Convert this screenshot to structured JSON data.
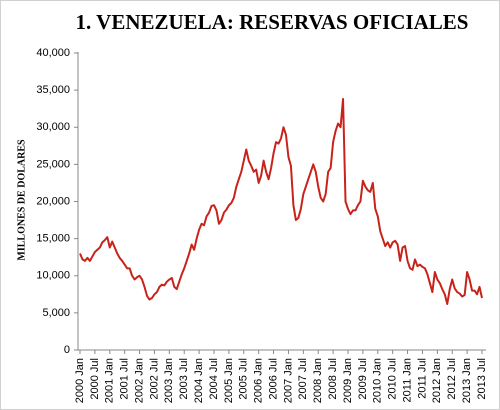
{
  "chart_data": {
    "type": "line",
    "title": "1. VENEZUELA: RESERVAS OFICIALES",
    "y_label": "MILLONES DE DOLARES",
    "color": "#c8231b",
    "ylim": [
      0,
      40000
    ],
    "yticks": [
      0,
      {
        "value": 5000,
        "label": "5,000"
      },
      {
        "value": 10000,
        "label": "10,000"
      },
      {
        "value": 15000,
        "label": "15,000"
      },
      {
        "value": 20000,
        "label": "20,000"
      },
      {
        "value": 25000,
        "label": "25,000"
      },
      {
        "value": 30000,
        "label": "30,000"
      },
      {
        "value": 35000,
        "label": "35,000"
      },
      {
        "value": 40000,
        "label": "40,000"
      }
    ],
    "categories": [
      "2000 Jan",
      null,
      null,
      null,
      null,
      null,
      "2000 Jul",
      null,
      null,
      null,
      null,
      null,
      "2001 Jan",
      null,
      null,
      null,
      null,
      null,
      "2001 Jul",
      null,
      null,
      null,
      null,
      null,
      "2002 Jan",
      null,
      null,
      null,
      null,
      null,
      "2002 Jul",
      null,
      null,
      null,
      null,
      null,
      "2003 Jan",
      null,
      null,
      null,
      null,
      null,
      "2003 Jul",
      null,
      null,
      null,
      null,
      null,
      "2004 Jan",
      null,
      null,
      null,
      null,
      null,
      "2004 Jul",
      null,
      null,
      null,
      null,
      null,
      "2005 Jan",
      null,
      null,
      null,
      null,
      null,
      "2005 Jul",
      null,
      null,
      null,
      null,
      null,
      "2006 Jan",
      null,
      null,
      null,
      null,
      null,
      "2006 Jul",
      null,
      null,
      null,
      null,
      null,
      "2007 Jan",
      null,
      null,
      null,
      null,
      null,
      "2007 Jul",
      null,
      null,
      null,
      null,
      null,
      "2008 Jan",
      null,
      null,
      null,
      null,
      null,
      "2008 Jul",
      null,
      null,
      null,
      null,
      null,
      "2009 Jan",
      null,
      null,
      null,
      null,
      null,
      "2009 Jul",
      null,
      null,
      null,
      null,
      null,
      "2010 Jan",
      null,
      null,
      null,
      null,
      null,
      "2010 Jul",
      null,
      null,
      null,
      null,
      null,
      "2011 Jan",
      null,
      null,
      null,
      null,
      null,
      "2011 Jul",
      null,
      null,
      null,
      null,
      null,
      "2012 Jan",
      null,
      null,
      null,
      null,
      null,
      "2012 Jul",
      null,
      null,
      null,
      null,
      null,
      "2013 Jan",
      null,
      null,
      null,
      null,
      null,
      "2013 Jul"
    ],
    "values": [
      13000,
      12200,
      12000,
      12400,
      12000,
      12600,
      13200,
      13500,
      13800,
      14500,
      14800,
      15200,
      13800,
      14600,
      13800,
      13000,
      12400,
      12000,
      11500,
      11000,
      11000,
      10000,
      9500,
      9800,
      10000,
      9500,
      8500,
      7300,
      6800,
      7000,
      7500,
      7800,
      8500,
      8800,
      8700,
      9200,
      9500,
      9700,
      8500,
      8200,
      9200,
      10200,
      11000,
      12000,
      13000,
      14200,
      13500,
      15000,
      16200,
      17000,
      16800,
      18000,
      18500,
      19400,
      19500,
      18800,
      17000,
      17500,
      18500,
      18900,
      19500,
      19800,
      20500,
      22000,
      23000,
      24000,
      25500,
      27000,
      25500,
      24800,
      24000,
      24300,
      22500,
      23500,
      25500,
      24000,
      23000,
      24500,
      26500,
      28000,
      27800,
      28500,
      30000,
      29000,
      26000,
      24800,
      19500,
      17500,
      17800,
      19000,
      21000,
      22000,
      23000,
      24000,
      25000,
      24000,
      22000,
      20500,
      20000,
      21000,
      24000,
      24500,
      28000,
      29500,
      30500,
      30000,
      33800,
      20000,
      19000,
      18300,
      18800,
      18800,
      19500,
      20000,
      22800,
      22000,
      21500,
      21300,
      22500,
      19000,
      18000,
      16000,
      15000,
      14000,
      14500,
      13800,
      14500,
      14700,
      14200,
      12000,
      13800,
      14000,
      12000,
      11000,
      10800,
      12200,
      11300,
      11500,
      11200,
      11000,
      10200,
      9000,
      7800,
      10500,
      9500,
      9000,
      8200,
      7500,
      6200,
      8200,
      9500,
      8300,
      7800,
      7600,
      7200,
      7400,
      10500,
      9500,
      8000,
      8000,
      7500,
      8500,
      7000
    ]
  }
}
